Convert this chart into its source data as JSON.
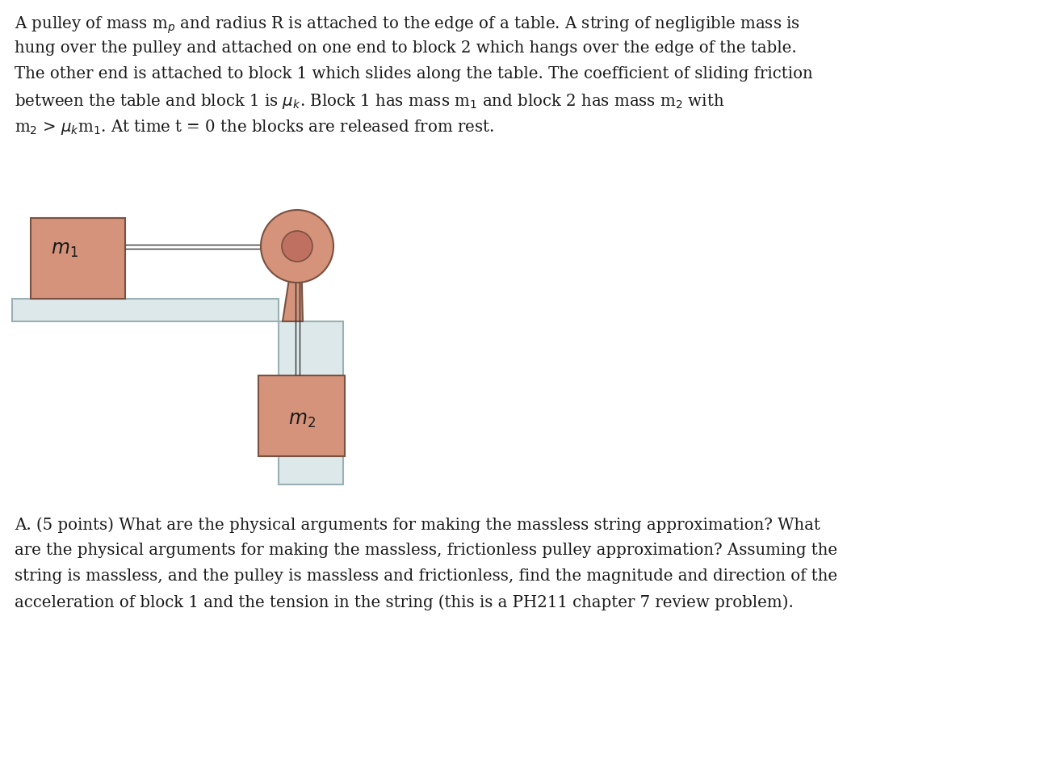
{
  "bg_color": "#ffffff",
  "block_color": "#d4937a",
  "block_edge_color": "#7a5040",
  "table_fill_color": "#dce8ea",
  "table_edge_color": "#9ab0b4",
  "string_color": "#333333",
  "pulley_color": "#d4937a",
  "pulley_edge_color": "#7a5040",
  "pulley_inner_color": "#c07060",
  "text_color": "#1a1a1a",
  "m1_label": "$m_1$",
  "m2_label": "$m_2$",
  "top_text_lines": [
    "A pulley of mass m$_p$ and radius R is attached to the edge of a table. A string of negligible mass is",
    "hung over the pulley and attached on one end to block 2 which hangs over the edge of the table.",
    "The other end is attached to block 1 which slides along the table. The coefficient of sliding friction",
    "between the table and block 1 is $\\mu_k$. Block 1 has mass m$_1$ and block 2 has mass m$_2$ with",
    "m$_2$ > $\\mu_k$m$_1$. At time t = 0 the blocks are released from rest."
  ],
  "bottom_text_lines": [
    "A. (5 points) What are the physical arguments for making the massless string approximation? What",
    "are the physical arguments for making the massless, frictionless pulley approximation? Assuming the",
    "string is massless, and the pulley is massless and frictionless, find the magnitude and direction of the",
    "acceleration of block 1 and the tension in the string (this is a PH211 chapter 7 review problem)."
  ],
  "figwidth": 12.93,
  "figheight": 9.4,
  "dpi": 100
}
